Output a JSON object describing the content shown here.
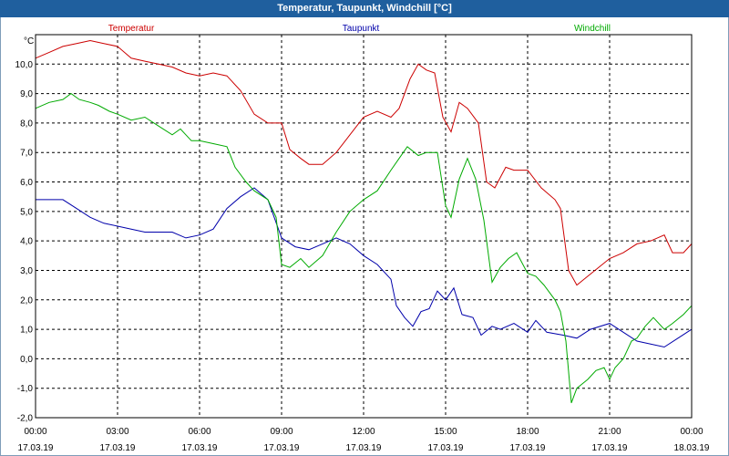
{
  "window": {
    "title": "Temperatur, Taupunkt, Windchill [°C]"
  },
  "chart_data": {
    "type": "line",
    "title": "Temperatur, Taupunkt, Windchill [°C]",
    "ylabel": "°C",
    "ylim": [
      -2.0,
      11.0
    ],
    "y_ticks": [
      "10,0",
      "9,0",
      "8,0",
      "7,0",
      "6,0",
      "5,0",
      "4,0",
      "3,0",
      "2,0",
      "1,0",
      "0,0",
      "-1,0",
      "-2,0"
    ],
    "y_tick_values": [
      10,
      9,
      8,
      7,
      6,
      5,
      4,
      3,
      2,
      1,
      0,
      -1,
      -2
    ],
    "xlim": [
      0,
      24
    ],
    "x_tick_values": [
      0,
      3,
      6,
      9,
      12,
      15,
      18,
      21,
      24
    ],
    "x_ticks": [
      {
        "time": "00:00",
        "date": "17.03.19"
      },
      {
        "time": "03:00",
        "date": "17.03.19"
      },
      {
        "time": "06:00",
        "date": "17.03.19"
      },
      {
        "time": "09:00",
        "date": "17.03.19"
      },
      {
        "time": "12:00",
        "date": "17.03.19"
      },
      {
        "time": "15:00",
        "date": "17.03.19"
      },
      {
        "time": "18:00",
        "date": "17.03.19"
      },
      {
        "time": "21:00",
        "date": "17.03.19"
      },
      {
        "time": "00:00",
        "date": "18.03.19"
      }
    ],
    "grid": true,
    "series": [
      {
        "name": "Temperatur",
        "color": "#cc0000",
        "points": [
          [
            0,
            10.2
          ],
          [
            0.5,
            10.4
          ],
          [
            1,
            10.6
          ],
          [
            1.5,
            10.7
          ],
          [
            2,
            10.8
          ],
          [
            2.5,
            10.7
          ],
          [
            3,
            10.6
          ],
          [
            3.5,
            10.2
          ],
          [
            4,
            10.1
          ],
          [
            4.5,
            10.0
          ],
          [
            5,
            9.9
          ],
          [
            5.5,
            9.7
          ],
          [
            6,
            9.6
          ],
          [
            6.5,
            9.7
          ],
          [
            7,
            9.6
          ],
          [
            7.5,
            9.1
          ],
          [
            8,
            8.3
          ],
          [
            8.5,
            8.0
          ],
          [
            9,
            8.0
          ],
          [
            9.3,
            7.1
          ],
          [
            9.7,
            6.8
          ],
          [
            10,
            6.6
          ],
          [
            10.5,
            6.6
          ],
          [
            11,
            7.0
          ],
          [
            11.5,
            7.6
          ],
          [
            12,
            8.2
          ],
          [
            12.5,
            8.4
          ],
          [
            13,
            8.2
          ],
          [
            13.3,
            8.5
          ],
          [
            13.7,
            9.5
          ],
          [
            14,
            10.0
          ],
          [
            14.3,
            9.8
          ],
          [
            14.6,
            9.7
          ],
          [
            14.9,
            8.2
          ],
          [
            15.2,
            7.7
          ],
          [
            15.5,
            8.7
          ],
          [
            15.8,
            8.5
          ],
          [
            16.2,
            8.0
          ],
          [
            16.5,
            6.0
          ],
          [
            16.8,
            5.8
          ],
          [
            17.2,
            6.5
          ],
          [
            17.5,
            6.4
          ],
          [
            18,
            6.4
          ],
          [
            18.5,
            5.8
          ],
          [
            19,
            5.4
          ],
          [
            19.2,
            5.1
          ],
          [
            19.5,
            3.0
          ],
          [
            19.8,
            2.5
          ],
          [
            20.2,
            2.8
          ],
          [
            21,
            3.4
          ],
          [
            21.5,
            3.6
          ],
          [
            22,
            3.9
          ],
          [
            22.5,
            4.0
          ],
          [
            23,
            4.2
          ],
          [
            23.3,
            3.6
          ],
          [
            23.7,
            3.6
          ],
          [
            24,
            3.9
          ]
        ]
      },
      {
        "name": "Taupunkt",
        "color": "#0000aa",
        "points": [
          [
            0,
            5.4
          ],
          [
            1,
            5.4
          ],
          [
            1.5,
            5.1
          ],
          [
            2,
            4.8
          ],
          [
            2.5,
            4.6
          ],
          [
            3,
            4.5
          ],
          [
            3.5,
            4.4
          ],
          [
            4,
            4.3
          ],
          [
            4.5,
            4.3
          ],
          [
            5,
            4.3
          ],
          [
            5.5,
            4.1
          ],
          [
            6,
            4.2
          ],
          [
            6.5,
            4.4
          ],
          [
            7,
            5.1
          ],
          [
            7.5,
            5.5
          ],
          [
            8,
            5.8
          ],
          [
            8.5,
            5.4
          ],
          [
            9,
            4.1
          ],
          [
            9.5,
            3.8
          ],
          [
            10,
            3.7
          ],
          [
            10.5,
            3.9
          ],
          [
            11,
            4.1
          ],
          [
            11.5,
            3.9
          ],
          [
            12,
            3.5
          ],
          [
            12.5,
            3.2
          ],
          [
            13,
            2.7
          ],
          [
            13.2,
            1.8
          ],
          [
            13.5,
            1.4
          ],
          [
            13.8,
            1.1
          ],
          [
            14.1,
            1.6
          ],
          [
            14.4,
            1.7
          ],
          [
            14.7,
            2.3
          ],
          [
            15,
            2.0
          ],
          [
            15.3,
            2.4
          ],
          [
            15.6,
            1.5
          ],
          [
            16,
            1.4
          ],
          [
            16.3,
            0.8
          ],
          [
            16.7,
            1.1
          ],
          [
            17,
            1.0
          ],
          [
            17.5,
            1.2
          ],
          [
            18,
            0.9
          ],
          [
            18.3,
            1.3
          ],
          [
            18.7,
            0.9
          ],
          [
            19.3,
            0.8
          ],
          [
            19.8,
            0.7
          ],
          [
            20.3,
            1.0
          ],
          [
            21,
            1.2
          ],
          [
            21.5,
            0.9
          ],
          [
            22,
            0.6
          ],
          [
            22.5,
            0.5
          ],
          [
            23,
            0.4
          ],
          [
            23.5,
            0.7
          ],
          [
            24,
            1.0
          ]
        ]
      },
      {
        "name": "Windchill",
        "color": "#00aa00",
        "points": [
          [
            0,
            8.5
          ],
          [
            0.5,
            8.7
          ],
          [
            1,
            8.8
          ],
          [
            1.3,
            9.0
          ],
          [
            1.6,
            8.8
          ],
          [
            2,
            8.7
          ],
          [
            2.3,
            8.6
          ],
          [
            2.7,
            8.4
          ],
          [
            3,
            8.3
          ],
          [
            3.5,
            8.1
          ],
          [
            4,
            8.2
          ],
          [
            4.5,
            7.9
          ],
          [
            5,
            7.6
          ],
          [
            5.3,
            7.8
          ],
          [
            5.7,
            7.4
          ],
          [
            6,
            7.4
          ],
          [
            6.5,
            7.3
          ],
          [
            7,
            7.2
          ],
          [
            7.3,
            6.5
          ],
          [
            7.7,
            6.0
          ],
          [
            8,
            5.7
          ],
          [
            8.5,
            5.4
          ],
          [
            8.8,
            4.8
          ],
          [
            9,
            3.2
          ],
          [
            9.3,
            3.1
          ],
          [
            9.7,
            3.4
          ],
          [
            10,
            3.1
          ],
          [
            10.5,
            3.5
          ],
          [
            11,
            4.3
          ],
          [
            11.5,
            5.0
          ],
          [
            12,
            5.4
          ],
          [
            12.5,
            5.7
          ],
          [
            13,
            6.4
          ],
          [
            13.3,
            6.8
          ],
          [
            13.6,
            7.2
          ],
          [
            14,
            6.9
          ],
          [
            14.3,
            7.0
          ],
          [
            14.7,
            7.0
          ],
          [
            15,
            5.2
          ],
          [
            15.2,
            4.8
          ],
          [
            15.5,
            6.1
          ],
          [
            15.8,
            6.8
          ],
          [
            16.1,
            6.1
          ],
          [
            16.4,
            4.7
          ],
          [
            16.7,
            2.6
          ],
          [
            17,
            3.1
          ],
          [
            17.3,
            3.4
          ],
          [
            17.6,
            3.6
          ],
          [
            18,
            2.9
          ],
          [
            18.3,
            2.8
          ],
          [
            18.6,
            2.5
          ],
          [
            19,
            2.0
          ],
          [
            19.2,
            1.6
          ],
          [
            19.4,
            0.6
          ],
          [
            19.6,
            -1.5
          ],
          [
            19.8,
            -1.0
          ],
          [
            20.2,
            -0.7
          ],
          [
            20.5,
            -0.4
          ],
          [
            20.8,
            -0.3
          ],
          [
            21,
            -0.7
          ],
          [
            21.2,
            -0.3
          ],
          [
            21.5,
            0.0
          ],
          [
            21.8,
            0.6
          ],
          [
            22,
            0.7
          ],
          [
            22.3,
            1.1
          ],
          [
            22.6,
            1.4
          ],
          [
            23,
            1.0
          ],
          [
            23.3,
            1.2
          ],
          [
            23.7,
            1.5
          ],
          [
            24,
            1.8
          ]
        ]
      }
    ]
  }
}
